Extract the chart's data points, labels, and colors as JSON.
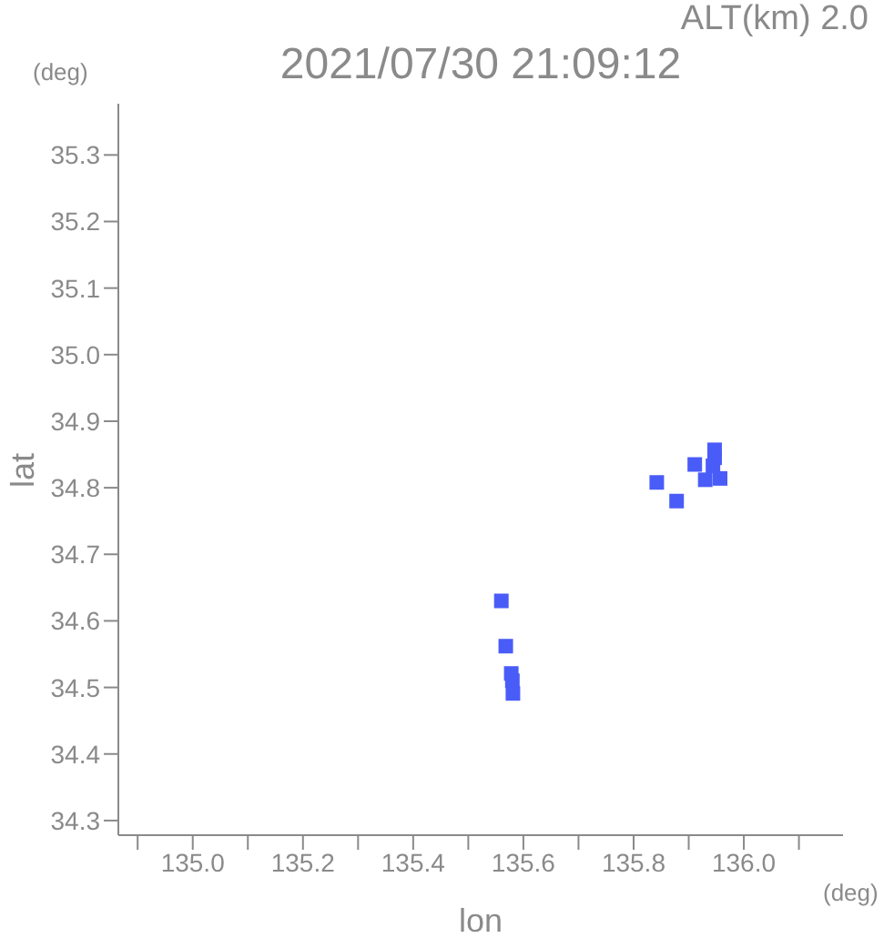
{
  "chart_data": {
    "type": "scatter",
    "title": "2021/07/30 21:09:12",
    "xlabel": "lon",
    "ylabel": "lat",
    "annotations": [
      "ALT(km) 2.0",
      "(deg)",
      "(deg)"
    ],
    "x": [
      135.947,
      135.947,
      135.944,
      135.93,
      135.957,
      135.911,
      135.842,
      135.878,
      135.56,
      135.568,
      135.578,
      135.58,
      135.581
    ],
    "series": [
      {
        "color": "#4a5cf8",
        "values": [
          34.857,
          34.845,
          34.833,
          34.812,
          34.814,
          34.835,
          34.808,
          34.78,
          34.63,
          34.562,
          34.521,
          34.51,
          34.491
        ]
      }
    ],
    "marker": "square",
    "grid": false,
    "xlim": [
      134.865,
      136.18
    ],
    "ylim": [
      34.278,
      35.377
    ],
    "xticks": [
      {
        "value": 134.9,
        "label": null
      },
      {
        "value": 135,
        "label": "135.0"
      },
      {
        "value": 135.1,
        "label": null
      },
      135.2,
      {
        "value": 135.3,
        "label": null
      },
      135.4,
      {
        "value": 135.5,
        "label": null
      },
      135.6,
      {
        "value": 135.7,
        "label": null
      },
      135.8,
      {
        "value": 135.9,
        "label": null
      },
      {
        "value": 136,
        "label": "136.0"
      },
      {
        "value": 136.1,
        "label": null
      }
    ],
    "yticks": [
      34.3,
      34.4,
      34.5,
      34.6,
      34.7,
      34.8,
      34.9,
      {
        "value": 35,
        "label": "35.0"
      },
      35.1,
      35.2,
      35.3
    ]
  }
}
